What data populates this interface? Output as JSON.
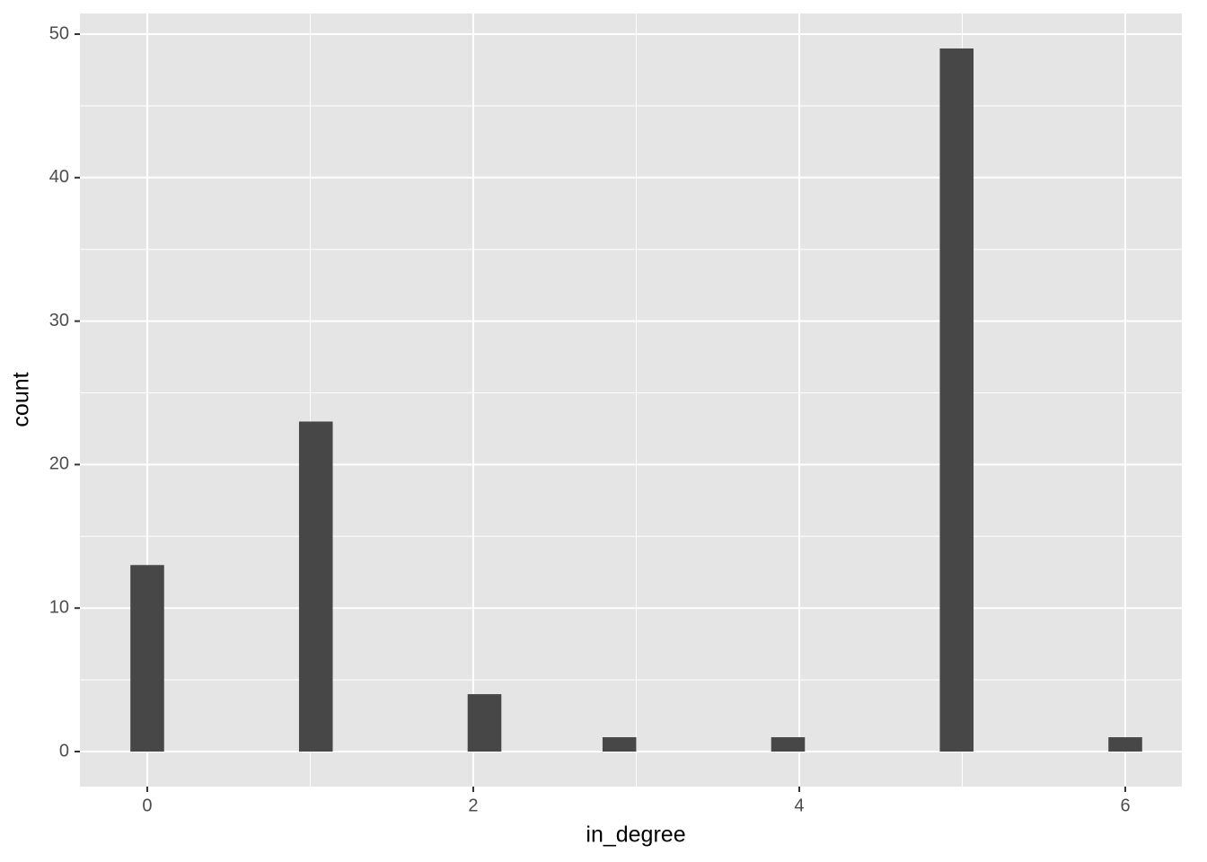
{
  "chart_data": {
    "type": "histogram",
    "x_label": "in_degree",
    "y_label": "count",
    "bins": [
      -0.1034,
      0.1034,
      0.3103,
      0.5172,
      0.7241,
      0.931,
      1.1379,
      1.3448,
      1.5517,
      1.7586,
      1.9655,
      2.1724,
      2.3793,
      2.5862,
      2.7931,
      3.0,
      3.2069,
      3.4138,
      3.6207,
      3.8276,
      4.0345,
      4.2414,
      4.4483,
      4.6552,
      4.8621,
      5.069,
      5.2759,
      5.4828,
      5.6897,
      5.8966,
      6.1034
    ],
    "values": [
      13,
      0,
      0,
      0,
      0,
      23,
      0,
      0,
      0,
      0,
      4,
      0,
      0,
      0,
      1,
      0,
      0,
      0,
      0,
      1,
      0,
      0,
      0,
      0,
      49,
      0,
      0,
      0,
      0,
      1
    ],
    "color": "#474747",
    "xlim": [
      -0.413,
      6.347
    ],
    "ylim": [
      -2.44,
      51.44
    ],
    "xticks": [
      0,
      2,
      4,
      6
    ],
    "yticks": [
      0,
      10,
      20,
      30,
      40,
      50
    ],
    "grid": true,
    "panel_color": "#e5e5e5"
  }
}
